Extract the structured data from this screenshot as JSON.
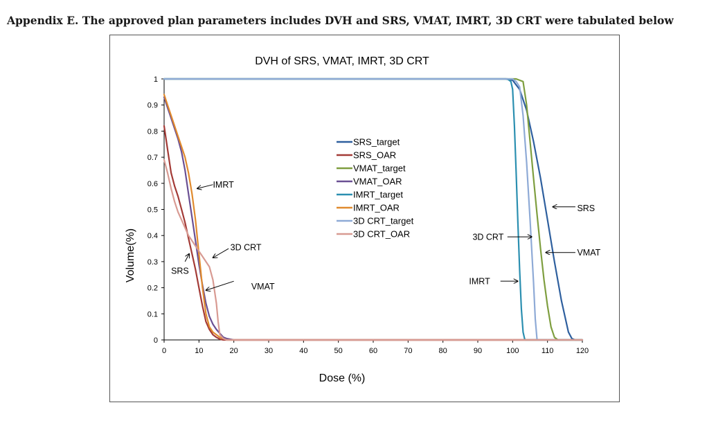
{
  "caption": "Appendix E. The approved plan parameters includes DVH and SRS, VMAT, IMRT, 3D CRT were tabulated below",
  "chart_data": {
    "type": "line",
    "title": "DVH of SRS, VMAT, IMRT, 3D CRT",
    "xlabel": "Dose (%)",
    "ylabel": "Volume(%)",
    "xlim": [
      0,
      120
    ],
    "ylim": [
      0,
      1
    ],
    "xticks": [
      "0",
      "10",
      "20",
      "30",
      "40",
      "50",
      "60",
      "70",
      "80",
      "90",
      "100",
      "110",
      "120"
    ],
    "yticks": [
      "0",
      "0.1",
      "0.2",
      "0.3",
      "0.4",
      "0.5",
      "0.6",
      "0.7",
      "0.8",
      "0.9",
      "1"
    ],
    "grid": false,
    "legend_position": "center",
    "series": [
      {
        "name": "SRS_target",
        "color": "#2e5f9e",
        "x": [
          0,
          98,
          100,
          102,
          104,
          106,
          108,
          110,
          112,
          114,
          116,
          117,
          118,
          120
        ],
        "y": [
          1,
          1,
          0.995,
          0.96,
          0.88,
          0.76,
          0.62,
          0.46,
          0.3,
          0.15,
          0.03,
          0.005,
          0,
          0
        ]
      },
      {
        "name": "SRS_OAR",
        "color": "#a33a36",
        "x": [
          0,
          1,
          2,
          3,
          4,
          5,
          6,
          7,
          8,
          9,
          10,
          11,
          12,
          13,
          14,
          15,
          16,
          17,
          18,
          20,
          120
        ],
        "y": [
          0.82,
          0.73,
          0.64,
          0.59,
          0.55,
          0.5,
          0.45,
          0.39,
          0.33,
          0.27,
          0.2,
          0.13,
          0.07,
          0.04,
          0.02,
          0.01,
          0.003,
          0,
          0,
          0,
          0
        ]
      },
      {
        "name": "VMAT_target",
        "color": "#7e9e3f",
        "x": [
          0,
          101,
          102,
          103,
          104,
          105,
          106,
          107,
          108,
          109,
          110,
          111,
          112,
          113,
          120
        ],
        "y": [
          1,
          1,
          0.995,
          0.99,
          0.9,
          0.76,
          0.62,
          0.48,
          0.35,
          0.23,
          0.13,
          0.05,
          0.01,
          0,
          0
        ]
      },
      {
        "name": "VMAT_OAR",
        "color": "#6a4f93",
        "x": [
          0,
          1,
          2,
          3,
          4,
          5,
          6,
          7,
          8,
          9,
          10,
          11,
          12,
          13,
          14,
          15,
          16,
          17,
          18,
          20,
          120
        ],
        "y": [
          0.93,
          0.89,
          0.85,
          0.81,
          0.77,
          0.72,
          0.65,
          0.56,
          0.47,
          0.38,
          0.29,
          0.21,
          0.14,
          0.09,
          0.06,
          0.04,
          0.025,
          0.01,
          0.005,
          0,
          0
        ]
      },
      {
        "name": "IMRT_target",
        "color": "#2b8fb0",
        "x": [
          0,
          98.5,
          99.5,
          100,
          100.5,
          101,
          101.5,
          102,
          102.5,
          103,
          103.5,
          120
        ],
        "y": [
          1,
          1,
          0.99,
          0.96,
          0.82,
          0.64,
          0.45,
          0.27,
          0.12,
          0.03,
          0,
          0
        ]
      },
      {
        "name": "IMRT_OAR",
        "color": "#e08a2e",
        "x": [
          0,
          1,
          2,
          3,
          4,
          5,
          6,
          7,
          8,
          9,
          10,
          11,
          12,
          13,
          14,
          15,
          16,
          17,
          18,
          20,
          120
        ],
        "y": [
          0.94,
          0.9,
          0.86,
          0.82,
          0.78,
          0.74,
          0.7,
          0.64,
          0.56,
          0.46,
          0.33,
          0.2,
          0.1,
          0.05,
          0.03,
          0.02,
          0.01,
          0.005,
          0,
          0,
          0
        ]
      },
      {
        "name": "3D CRT_target",
        "color": "#8eaad6",
        "x": [
          0,
          100,
          101,
          102,
          103,
          104,
          105,
          106,
          106.5,
          107,
          120
        ],
        "y": [
          1,
          1,
          0.99,
          0.97,
          0.86,
          0.68,
          0.46,
          0.22,
          0.08,
          0,
          0
        ]
      },
      {
        "name": "3D CRT_OAR",
        "color": "#d89a92",
        "x": [
          0,
          1,
          2,
          3,
          4,
          5,
          6,
          7,
          8,
          9,
          10,
          11,
          12,
          13,
          14,
          15,
          15.5,
          16,
          17,
          18,
          20,
          120
        ],
        "y": [
          0.69,
          0.64,
          0.58,
          0.53,
          0.49,
          0.46,
          0.43,
          0.4,
          0.38,
          0.36,
          0.34,
          0.32,
          0.3,
          0.28,
          0.23,
          0.14,
          0.07,
          0.02,
          0.005,
          0,
          0,
          0
        ]
      }
    ],
    "annotations": [
      {
        "text": "IMRT",
        "x": 14.0,
        "y": 0.595,
        "arrow_from": [
          14.0,
          0.595
        ],
        "arrow_to": [
          9.5,
          0.58
        ]
      },
      {
        "text": "SRS",
        "x": 2.0,
        "y": 0.265,
        "arrow_from": [
          6.0,
          0.3
        ],
        "arrow_to": [
          7.2,
          0.33
        ]
      },
      {
        "text": "3D CRT",
        "x": 19.0,
        "y": 0.355,
        "arrow_from": [
          18.5,
          0.35
        ],
        "arrow_to": [
          14.0,
          0.315
        ]
      },
      {
        "text": "VMAT",
        "x": 25.0,
        "y": 0.205,
        "arrow_from": [
          20.0,
          0.225
        ],
        "arrow_to": [
          12.0,
          0.19
        ]
      },
      {
        "text": "SRS",
        "x": 118.5,
        "y": 0.505,
        "arrow_from": [
          118.0,
          0.51
        ],
        "arrow_to": [
          111.5,
          0.51
        ]
      },
      {
        "text": "VMAT",
        "x": 118.5,
        "y": 0.335,
        "arrow_from": [
          118.0,
          0.335
        ],
        "arrow_to": [
          109.5,
          0.335
        ]
      },
      {
        "text": "3D CRT",
        "x": 88.5,
        "y": 0.395,
        "arrow_from": [
          98.5,
          0.395
        ],
        "arrow_to": [
          105.5,
          0.395
        ]
      },
      {
        "text": "IMRT",
        "x": 87.5,
        "y": 0.225,
        "arrow_from": [
          96.5,
          0.225
        ],
        "arrow_to": [
          101.5,
          0.225
        ]
      }
    ]
  }
}
